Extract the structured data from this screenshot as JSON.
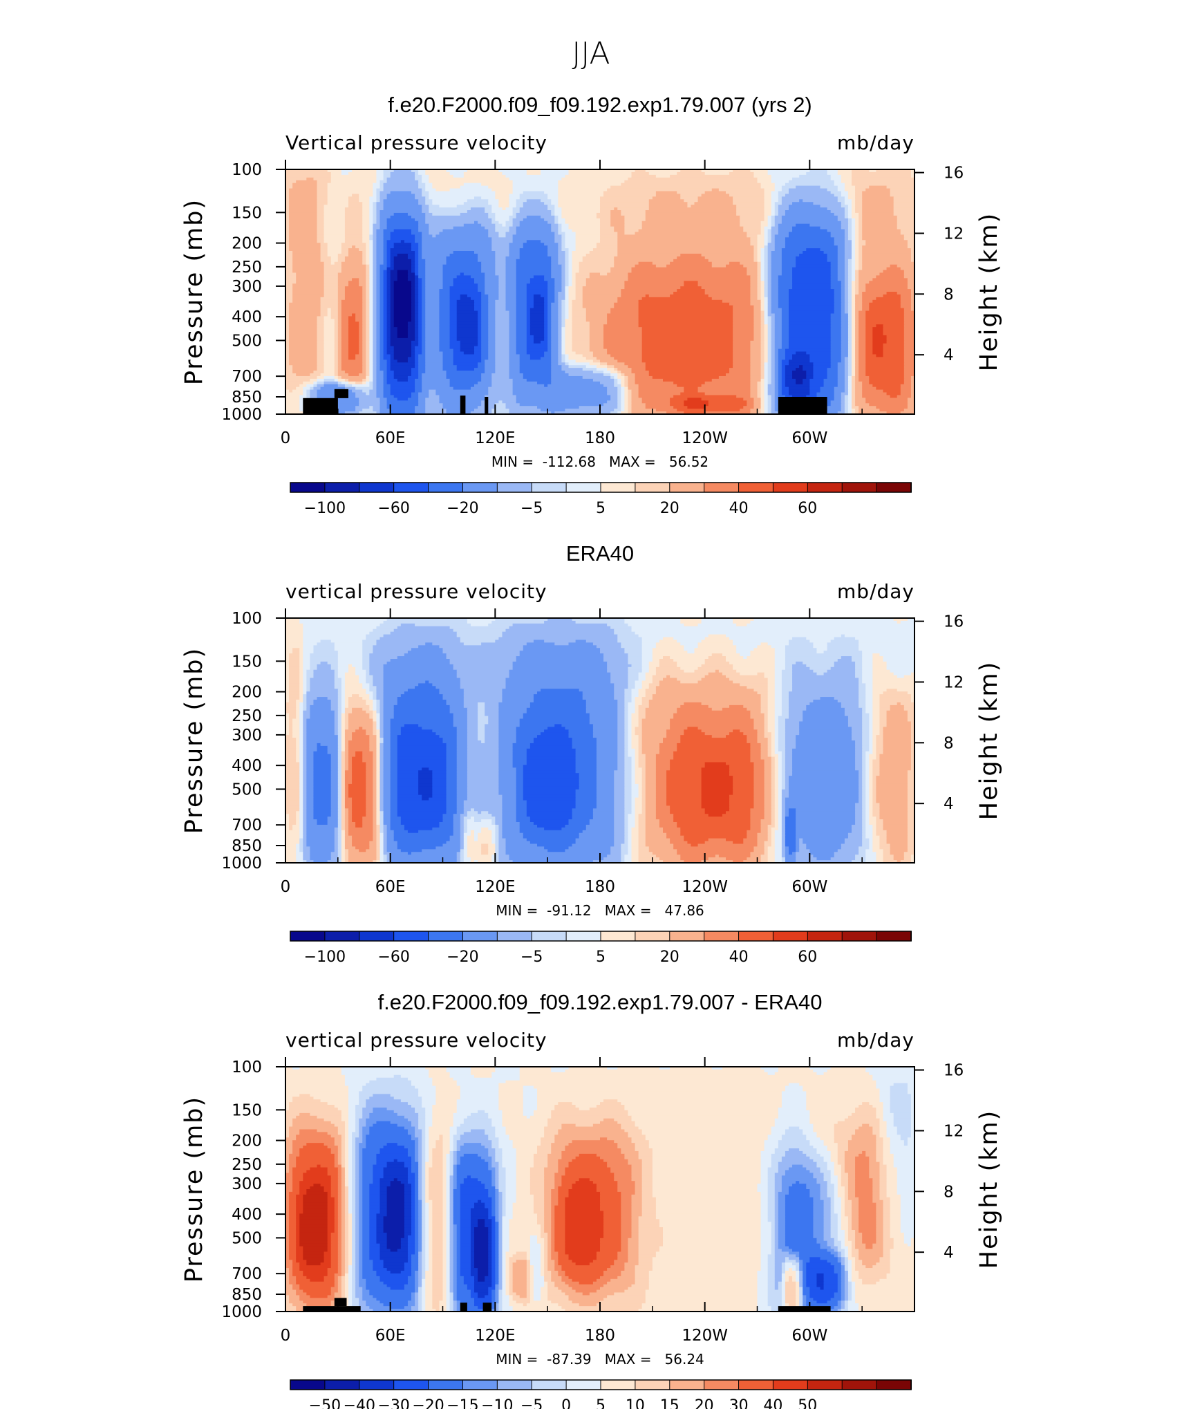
{
  "chart_data": {
    "type": "heatmap",
    "title": "JJA",
    "colorscale": [
      "#08088c",
      "#0c1eaa",
      "#0f37cf",
      "#1e55ee",
      "#3c76f0",
      "#6a98f3",
      "#9ab8f5",
      "#c7dbf8",
      "#e2eefb",
      "#fde8d3",
      "#fcd3b7",
      "#f9b28e",
      "#f58a62",
      "#f06036",
      "#e23c1c",
      "#c52510",
      "#a0140a",
      "#7a0505"
    ],
    "panels": [
      {
        "title": "f.e20.F2000.f09_f09.192.exp1.79.007 (yrs 2)",
        "variable_label": "Vertical pressure velocity",
        "units_label": "mb/day",
        "xlabel": "",
        "ylabel": "Pressure (mb)",
        "ylabel_right": "Height (km)",
        "x_ticks": [
          "0",
          "60E",
          "120E",
          "180",
          "120W",
          "60W"
        ],
        "x_tick_lon": [
          0,
          60,
          120,
          180,
          240,
          300
        ],
        "xlim": [
          0,
          360
        ],
        "y_ticks": [
          "100",
          "150",
          "200",
          "250",
          "300",
          "400",
          "500",
          "700",
          "850",
          "1000"
        ],
        "y_tick_p": [
          100,
          150,
          200,
          250,
          300,
          400,
          500,
          700,
          850,
          1000
        ],
        "ylim_mb": [
          1000,
          100
        ],
        "height_ticks": [
          "16",
          "12",
          "8",
          "4"
        ],
        "height_km": [
          16,
          12,
          8,
          4
        ],
        "minmax_text": "MIN =  -112.68   MAX =   56.52",
        "min": -112.68,
        "max": 56.52,
        "colorbar_labels": [
          "-100",
          "-60",
          "-20",
          "-5",
          "5",
          "20",
          "40",
          "60"
        ],
        "colorbar_levels": [
          -120,
          -100,
          -80,
          -60,
          -40,
          -20,
          -10,
          -5,
          0,
          5,
          10,
          20,
          30,
          40,
          50,
          60,
          70
        ],
        "cell_scale": 1.0,
        "terrain": [
          [
            10,
            30,
            860,
            1000
          ],
          [
            28,
            36,
            790,
            860
          ],
          [
            100,
            103,
            840,
            1000
          ],
          [
            114,
            116,
            850,
            1000
          ],
          [
            282,
            310,
            850,
            1000
          ]
        ],
        "features": [
          [
            0,
            22,
            100,
            1000,
            14
          ],
          [
            30,
            46,
            230,
            900,
            30
          ],
          [
            15,
            45,
            750,
            1000,
            -45
          ],
          [
            28,
            36,
            100,
            1000,
            -3
          ],
          [
            55,
            78,
            150,
            1000,
            -90
          ],
          [
            60,
            74,
            220,
            600,
            -40
          ],
          [
            85,
            118,
            180,
            900,
            -55
          ],
          [
            96,
            112,
            300,
            650,
            -35
          ],
          [
            130,
            155,
            180,
            850,
            -60
          ],
          [
            140,
            150,
            300,
            550,
            -30
          ],
          [
            155,
            195,
            650,
            1000,
            -35
          ],
          [
            120,
            200,
            100,
            300,
            -5
          ],
          [
            175,
            280,
            160,
            1000,
            22
          ],
          [
            190,
            270,
            300,
            950,
            15
          ],
          [
            220,
            265,
            850,
            1000,
            20
          ],
          [
            280,
            320,
            160,
            1000,
            -80
          ],
          [
            284,
            300,
            600,
            950,
            -45
          ],
          [
            318,
            360,
            120,
            1000,
            15
          ],
          [
            325,
            360,
            300,
            1000,
            25
          ],
          [
            0,
            360,
            100,
            170,
            5
          ]
        ]
      },
      {
        "title": "ERA40",
        "variable_label": "vertical pressure velocity",
        "units_label": "mb/day",
        "xlabel": "",
        "ylabel": "Pressure (mb)",
        "ylabel_right": "Height (km)",
        "x_ticks": [
          "0",
          "60E",
          "120E",
          "180",
          "120W",
          "60W"
        ],
        "x_tick_lon": [
          0,
          60,
          120,
          180,
          240,
          300
        ],
        "xlim": [
          0,
          360
        ],
        "y_ticks": [
          "100",
          "150",
          "200",
          "250",
          "300",
          "400",
          "500",
          "700",
          "850",
          "1000"
        ],
        "y_tick_p": [
          100,
          150,
          200,
          250,
          300,
          400,
          500,
          700,
          850,
          1000
        ],
        "ylim_mb": [
          1000,
          100
        ],
        "height_ticks": [
          "16",
          "12",
          "8",
          "4"
        ],
        "height_km": [
          16,
          12,
          8,
          4
        ],
        "minmax_text": "MIN =  -91.12   MAX =   47.86",
        "min": -91.12,
        "max": 47.86,
        "colorbar_labels": [
          "-100",
          "-60",
          "-20",
          "-5",
          "5",
          "20",
          "40",
          "60"
        ],
        "colorbar_levels": [
          -120,
          -100,
          -80,
          -60,
          -40,
          -20,
          -10,
          -5,
          0,
          5,
          10,
          20,
          30,
          40,
          50,
          60,
          70
        ],
        "cell_scale": 1.0,
        "terrain": [],
        "features": [
          [
            0,
            10,
            100,
            1000,
            8
          ],
          [
            12,
            30,
            220,
            1000,
            -45
          ],
          [
            34,
            56,
            250,
            980,
            38
          ],
          [
            55,
            100,
            160,
            1000,
            -55
          ],
          [
            60,
            95,
            300,
            800,
            -25
          ],
          [
            100,
            108,
            600,
            1000,
            15
          ],
          [
            110,
            122,
            650,
            1000,
            12
          ],
          [
            125,
            192,
            150,
            1000,
            -50
          ],
          [
            135,
            165,
            300,
            800,
            -30
          ],
          [
            195,
            282,
            160,
            1000,
            22
          ],
          [
            220,
            275,
            300,
            950,
            20
          ],
          [
            282,
            330,
            200,
            1000,
            -35
          ],
          [
            286,
            292,
            600,
            1000,
            -40
          ],
          [
            332,
            360,
            200,
            1000,
            15
          ],
          [
            0,
            360,
            100,
            190,
            -5
          ]
        ]
      },
      {
        "title": "f.e20.F2000.f09_f09.192.exp1.79.007 - ERA40",
        "variable_label": "vertical pressure velocity",
        "units_label": "mb/day",
        "xlabel": "",
        "ylabel": "Pressure (mb)",
        "ylabel_right": "Height (km)",
        "x_ticks": [
          "0",
          "60E",
          "120E",
          "180",
          "120W",
          "60W"
        ],
        "x_tick_lon": [
          0,
          60,
          120,
          180,
          240,
          300
        ],
        "xlim": [
          0,
          360
        ],
        "y_ticks": [
          "100",
          "150",
          "200",
          "250",
          "300",
          "400",
          "500",
          "700",
          "850",
          "1000"
        ],
        "y_tick_p": [
          100,
          150,
          200,
          250,
          300,
          400,
          500,
          700,
          850,
          1000
        ],
        "ylim_mb": [
          1000,
          100
        ],
        "height_ticks": [
          "16",
          "12",
          "8",
          "4"
        ],
        "height_km": [
          16,
          12,
          8,
          4
        ],
        "minmax_text": "MIN =  -87.39   MAX =   56.24",
        "min": -87.39,
        "max": 56.24,
        "colorbar_labels": [
          "-50",
          "-40",
          "-30",
          "-20",
          "-15",
          "-10",
          "-5",
          "0",
          "5",
          "10",
          "15",
          "20",
          "30",
          "40",
          "50"
        ],
        "colorbar_levels": [
          -60,
          -50,
          -40,
          -30,
          -20,
          -15,
          -10,
          -5,
          0,
          5,
          10,
          15,
          20,
          30,
          40,
          50,
          60
        ],
        "cell_scale": 0.5,
        "terrain": [
          [
            10,
            43,
            950,
            1000
          ],
          [
            28,
            35,
            880,
            950
          ],
          [
            100,
            104,
            920,
            1000
          ],
          [
            113,
            118,
            920,
            1000
          ],
          [
            282,
            312,
            950,
            1000
          ]
        ],
        "features": [
          [
            0,
            35,
            180,
            950,
            60
          ],
          [
            8,
            25,
            300,
            700,
            40
          ],
          [
            40,
            78,
            160,
            1000,
            -70
          ],
          [
            55,
            72,
            250,
            700,
            -40
          ],
          [
            78,
            95,
            180,
            1000,
            28
          ],
          [
            95,
            120,
            220,
            1000,
            -75
          ],
          [
            108,
            120,
            400,
            1000,
            -45
          ],
          [
            128,
            140,
            600,
            900,
            28
          ],
          [
            140,
            148,
            500,
            900,
            -18
          ],
          [
            150,
            200,
            180,
            850,
            48
          ],
          [
            158,
            180,
            300,
            700,
            30
          ],
          [
            200,
            282,
            130,
            1000,
            6
          ],
          [
            282,
            320,
            220,
            1000,
            -65
          ],
          [
            285,
            295,
            600,
            1000,
            55
          ],
          [
            300,
            320,
            600,
            950,
            -40
          ],
          [
            300,
            345,
            170,
            700,
            40
          ],
          [
            340,
            360,
            100,
            400,
            -15
          ]
        ]
      }
    ]
  }
}
